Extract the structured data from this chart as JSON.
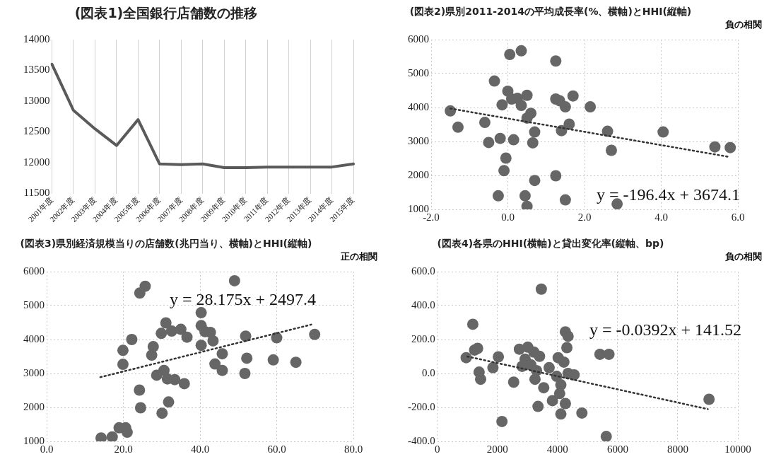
{
  "chart_data": [
    {
      "type": "line",
      "title": "(図表1)全国銀行店舗数の推移",
      "categories": [
        "2001年度",
        "2002年度",
        "2003年度",
        "2004年度",
        "2005年度",
        "2006年度",
        "2007年度",
        "2008年度",
        "2009年度",
        "2010年度",
        "2011年度",
        "2012年度",
        "2013年度",
        "2014年度",
        "2015年度"
      ],
      "values": [
        13600,
        12850,
        12550,
        12280,
        12700,
        11980,
        11970,
        11980,
        11920,
        11920,
        11930,
        11930,
        11930,
        11930,
        11980
      ],
      "color": "#5a5a5a",
      "marker": "none",
      "ylim": [
        11500,
        14000
      ],
      "yticks": [
        11500,
        12000,
        12500,
        13000,
        13500,
        14000
      ],
      "grid": "x"
    },
    {
      "type": "scatter",
      "title": "(図表2)県別2011-2014の平均成長率(%、横軸)とHHI(縦軸)",
      "annotations": [
        "負の相関",
        "y = -196.4x + 3674.1"
      ],
      "series": [
        {
          "color": "#666666",
          "marker": "circle",
          "x": [
            -1.5,
            -1.3,
            -0.6,
            -0.5,
            -0.35,
            -0.2,
            -0.25,
            -0.05,
            -0.1,
            0.05,
            0.35,
            0.0,
            -0.15,
            0.1,
            0.25,
            0.5,
            0.35,
            0.6,
            0.5,
            0.15,
            0.7,
            0.65,
            0.7,
            0.45,
            0.5,
            1.25,
            1.25,
            1.35,
            1.5,
            1.7,
            1.4,
            1.6,
            1.25,
            1.5,
            2.15,
            2.6,
            2.7,
            2.85,
            4.05,
            5.4,
            5.8
          ],
          "values": [
            3900,
            3420,
            3560,
            2970,
            4780,
            3090,
            1400,
            2510,
            2140,
            5560,
            5670,
            4480,
            4080,
            4250,
            4270,
            4360,
            4060,
            3830,
            3690,
            3050,
            3280,
            2960,
            1850,
            1400,
            1090,
            5370,
            4250,
            4200,
            4020,
            4340,
            3320,
            3510,
            1990,
            1280,
            4020,
            3300,
            2740,
            1160,
            3280,
            2840,
            2820
          ]
        },
        {
          "type": "line",
          "color": "#333333",
          "marker": "none",
          "line_style": "dotted",
          "x": [
            -1.5,
            5.8
          ],
          "values": [
            3970,
            2540
          ]
        }
      ],
      "xlim": [
        -2,
        6
      ],
      "xticks": [
        {
          "value": -2,
          "label": "-2.0"
        },
        {
          "value": 0,
          "label": "0.0"
        },
        {
          "value": 2,
          "label": "2.0"
        },
        {
          "value": 4,
          "label": "4.0"
        },
        {
          "value": 6,
          "label": "6.0"
        }
      ],
      "ylim": [
        1000,
        6000
      ],
      "yticks": [
        1000,
        2000,
        3000,
        4000,
        5000,
        6000
      ],
      "grid": true
    },
    {
      "type": "scatter",
      "title": "(図表3)県別経済規模当りの店舗数(兆円当り、横軸)とHHI(縦軸)",
      "annotations": [
        "正の相関",
        "y = 28.175x + 2497.4"
      ],
      "series": [
        {
          "color": "#666666",
          "marker": "circle",
          "x": [
            14.2,
            17.1,
            18.9,
            20.6,
            21.0,
            19.9,
            19.9,
            22.2,
            24.2,
            24.5,
            24.3,
            25.7,
            27.8,
            27.4,
            30.1,
            31.8,
            28.7,
            30.6,
            31.5,
            33.4,
            35.9,
            29.9,
            31.1,
            32.6,
            35.0,
            36.6,
            40.3,
            40.3,
            41.3,
            42.7,
            43.4,
            40.3,
            43.9,
            45.8,
            45.8,
            49.0,
            51.9,
            52.2,
            51.7,
            60.0,
            59.1,
            65.0,
            69.9
          ],
          "values": [
            1100,
            1130,
            1400,
            1400,
            1270,
            3680,
            3270,
            4000,
            2510,
            1990,
            5370,
            5570,
            3790,
            3540,
            1830,
            2160,
            2950,
            3090,
            2840,
            2820,
            2700,
            4180,
            4490,
            4250,
            4300,
            4070,
            4790,
            4410,
            4230,
            4210,
            3960,
            3830,
            3280,
            3580,
            3090,
            5730,
            4100,
            3450,
            3000,
            4050,
            3400,
            3330,
            4150
          ]
        },
        {
          "type": "line",
          "color": "#333333",
          "marker": "none",
          "line_style": "dotted",
          "x": [
            14,
            69
          ],
          "values": [
            2890,
            4440
          ]
        }
      ],
      "xlim": [
        0,
        80
      ],
      "xticks": [
        {
          "value": 0,
          "label": "0.0"
        },
        {
          "value": 20,
          "label": "20.0"
        },
        {
          "value": 40,
          "label": "40.0"
        },
        {
          "value": 60,
          "label": "60.0"
        },
        {
          "value": 80,
          "label": "80.0"
        }
      ],
      "ylim": [
        1000,
        6000
      ],
      "yticks": [
        1000,
        2000,
        3000,
        4000,
        5000,
        6000
      ],
      "grid": true
    },
    {
      "type": "scatter",
      "title": "(図表4)各県のHHI(横軸)と貸出変化率(縦軸、bp)",
      "annotations": [
        "負の相関",
        "y = -0.0392x + 141.52"
      ],
      "series": [
        {
          "color": "#666666",
          "marker": "circle",
          "x": [
            1180,
            960,
            1240,
            1340,
            1390,
            1440,
            2030,
            1850,
            2150,
            2540,
            3460,
            2730,
            3010,
            3210,
            3400,
            2920,
            2820,
            3110,
            3300,
            3250,
            3540,
            3720,
            4020,
            4210,
            3970,
            4110,
            4350,
            4550,
            3830,
            3350,
            4070,
            4260,
            4110,
            4260,
            4310,
            4350,
            4810,
            5410,
            5710,
            5620,
            9040
          ],
          "values": [
            290,
            93,
            138,
            148,
            8,
            -34,
            98,
            34,
            -283,
            -51,
            497,
            143,
            155,
            126,
            101,
            84,
            42,
            51,
            17,
            -34,
            -84,
            34,
            93,
            67,
            -17,
            -67,
            0,
            -8,
            -160,
            -194,
            -118,
            -177,
            -239,
            245,
            152,
            219,
            -233,
            113,
            113,
            -371,
            -152
          ]
        },
        {
          "type": "line",
          "color": "#333333",
          "marker": "none",
          "line_style": "dotted",
          "x": [
            1000,
            9000
          ],
          "values": [
            100,
            -210
          ]
        }
      ],
      "xlim": [
        0,
        10000
      ],
      "xticks": [
        0,
        2000,
        4000,
        6000,
        8000,
        10000
      ],
      "ylim": [
        -400,
        600
      ],
      "yticks": [
        {
          "value": -400,
          "label": "-400.0"
        },
        {
          "value": -200,
          "label": "-200.0"
        },
        {
          "value": 0,
          "label": "0.0"
        },
        {
          "value": 200,
          "label": "200.0"
        },
        {
          "value": 400,
          "label": "400.0"
        },
        {
          "value": 600,
          "label": "600.0"
        }
      ],
      "grid": true
    }
  ]
}
